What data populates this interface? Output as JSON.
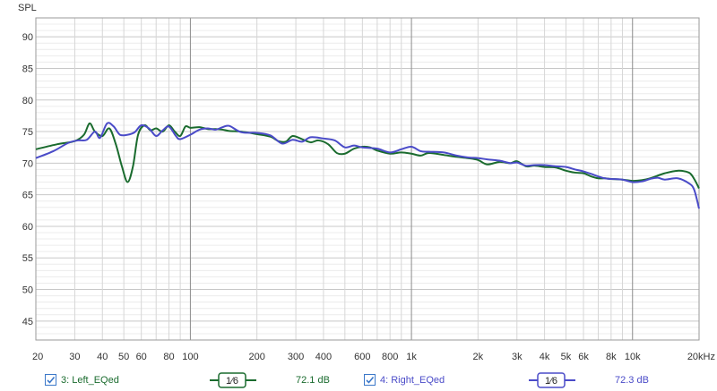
{
  "colors": {
    "left": "#1a6b2e",
    "right": "#4a4bc8"
  },
  "chart_data": {
    "type": "line",
    "ylabel": "SPL",
    "ylim": [
      42,
      93
    ],
    "yticks": [
      45,
      50,
      55,
      60,
      65,
      70,
      75,
      80,
      85,
      90
    ],
    "xscale": "log",
    "xlim": [
      20,
      20000
    ],
    "xticks": [
      {
        "v": 20,
        "label": "20"
      },
      {
        "v": 30,
        "label": "30"
      },
      {
        "v": 40,
        "label": "40"
      },
      {
        "v": 50,
        "label": "50"
      },
      {
        "v": 60,
        "label": "60"
      },
      {
        "v": 80,
        "label": "80"
      },
      {
        "v": 100,
        "label": "100"
      },
      {
        "v": 200,
        "label": "200"
      },
      {
        "v": 300,
        "label": "300"
      },
      {
        "v": 400,
        "label": "400"
      },
      {
        "v": 600,
        "label": "600"
      },
      {
        "v": 800,
        "label": "800"
      },
      {
        "v": 1000,
        "label": "1k"
      },
      {
        "v": 2000,
        "label": "2k"
      },
      {
        "v": 3000,
        "label": "3k"
      },
      {
        "v": 4000,
        "label": "4k"
      },
      {
        "v": 5000,
        "label": "5k"
      },
      {
        "v": 6000,
        "label": "6k"
      },
      {
        "v": 8000,
        "label": "8k"
      },
      {
        "v": 10000,
        "label": "10k"
      },
      {
        "v": 20000,
        "label": "20kHz"
      }
    ],
    "grid": true,
    "series": [
      {
        "name": "3: Left_EQed",
        "key": "left",
        "points": [
          [
            20,
            72.2
          ],
          [
            25,
            73.0
          ],
          [
            30,
            73.5
          ],
          [
            33,
            74.5
          ],
          [
            35,
            76.3
          ],
          [
            37,
            75.0
          ],
          [
            40,
            74.3
          ],
          [
            43,
            75.5
          ],
          [
            46,
            73.0
          ],
          [
            49,
            69.5
          ],
          [
            52,
            67.0
          ],
          [
            55,
            69.5
          ],
          [
            58,
            74.5
          ],
          [
            62,
            76.0
          ],
          [
            66,
            75.2
          ],
          [
            70,
            75.5
          ],
          [
            75,
            75.0
          ],
          [
            80,
            76.0
          ],
          [
            85,
            75.0
          ],
          [
            90,
            74.3
          ],
          [
            95,
            75.8
          ],
          [
            100,
            75.6
          ],
          [
            110,
            75.7
          ],
          [
            120,
            75.4
          ],
          [
            130,
            75.4
          ],
          [
            140,
            75.3
          ],
          [
            150,
            75.1
          ],
          [
            170,
            75.0
          ],
          [
            200,
            74.6
          ],
          [
            230,
            74.2
          ],
          [
            250,
            73.5
          ],
          [
            270,
            73.4
          ],
          [
            290,
            74.3
          ],
          [
            320,
            73.8
          ],
          [
            350,
            73.3
          ],
          [
            380,
            73.6
          ],
          [
            420,
            73.0
          ],
          [
            460,
            71.6
          ],
          [
            500,
            71.5
          ],
          [
            550,
            72.3
          ],
          [
            600,
            72.6
          ],
          [
            650,
            72.5
          ],
          [
            700,
            72.0
          ],
          [
            800,
            71.5
          ],
          [
            900,
            71.7
          ],
          [
            1000,
            71.5
          ],
          [
            1100,
            71.2
          ],
          [
            1200,
            71.6
          ],
          [
            1400,
            71.3
          ],
          [
            1600,
            71.0
          ],
          [
            1800,
            70.8
          ],
          [
            2000,
            70.5
          ],
          [
            2200,
            69.8
          ],
          [
            2500,
            70.2
          ],
          [
            2800,
            70.0
          ],
          [
            3000,
            70.3
          ],
          [
            3300,
            69.5
          ],
          [
            3600,
            69.6
          ],
          [
            4000,
            69.4
          ],
          [
            4500,
            69.3
          ],
          [
            5000,
            68.8
          ],
          [
            5500,
            68.5
          ],
          [
            6000,
            68.4
          ],
          [
            6500,
            67.9
          ],
          [
            7000,
            67.6
          ],
          [
            7500,
            67.6
          ],
          [
            8000,
            67.5
          ],
          [
            9000,
            67.4
          ],
          [
            10000,
            67.2
          ],
          [
            11000,
            67.3
          ],
          [
            12000,
            67.6
          ],
          [
            14000,
            68.4
          ],
          [
            16000,
            68.8
          ],
          [
            18000,
            68.5
          ],
          [
            19000,
            67.5
          ],
          [
            20000,
            66.0
          ]
        ]
      },
      {
        "name": "4: Right_EQed",
        "key": "right",
        "points": [
          [
            20,
            70.8
          ],
          [
            24,
            71.9
          ],
          [
            28,
            73.2
          ],
          [
            31,
            73.6
          ],
          [
            34,
            73.7
          ],
          [
            37,
            75.0
          ],
          [
            39,
            74.0
          ],
          [
            42,
            76.3
          ],
          [
            45,
            75.8
          ],
          [
            48,
            74.5
          ],
          [
            52,
            74.5
          ],
          [
            56,
            74.9
          ],
          [
            60,
            76.0
          ],
          [
            65,
            75.5
          ],
          [
            70,
            74.3
          ],
          [
            75,
            75.2
          ],
          [
            80,
            75.8
          ],
          [
            86,
            74.3
          ],
          [
            90,
            73.8
          ],
          [
            100,
            74.5
          ],
          [
            110,
            75.3
          ],
          [
            120,
            75.5
          ],
          [
            130,
            75.3
          ],
          [
            140,
            75.7
          ],
          [
            150,
            75.9
          ],
          [
            170,
            74.9
          ],
          [
            200,
            74.8
          ],
          [
            230,
            74.4
          ],
          [
            260,
            73.1
          ],
          [
            290,
            73.7
          ],
          [
            320,
            73.4
          ],
          [
            350,
            74.1
          ],
          [
            400,
            73.9
          ],
          [
            450,
            73.6
          ],
          [
            500,
            72.5
          ],
          [
            550,
            72.8
          ],
          [
            600,
            72.5
          ],
          [
            700,
            72.3
          ],
          [
            800,
            71.7
          ],
          [
            900,
            72.2
          ],
          [
            1000,
            72.6
          ],
          [
            1100,
            71.9
          ],
          [
            1200,
            71.8
          ],
          [
            1400,
            71.7
          ],
          [
            1600,
            71.2
          ],
          [
            1800,
            70.9
          ],
          [
            2000,
            70.8
          ],
          [
            2200,
            70.6
          ],
          [
            2500,
            70.4
          ],
          [
            2800,
            70.0
          ],
          [
            3000,
            70.1
          ],
          [
            3300,
            69.6
          ],
          [
            3600,
            69.7
          ],
          [
            4000,
            69.7
          ],
          [
            4500,
            69.5
          ],
          [
            5000,
            69.4
          ],
          [
            5500,
            69.0
          ],
          [
            6000,
            68.7
          ],
          [
            6500,
            68.3
          ],
          [
            7000,
            67.9
          ],
          [
            7500,
            67.6
          ],
          [
            8000,
            67.5
          ],
          [
            9000,
            67.4
          ],
          [
            10000,
            67.0
          ],
          [
            11000,
            67.1
          ],
          [
            12000,
            67.5
          ],
          [
            13000,
            67.7
          ],
          [
            14000,
            67.4
          ],
          [
            16000,
            67.6
          ],
          [
            18000,
            66.8
          ],
          [
            19000,
            65.8
          ],
          [
            20000,
            62.8
          ]
        ]
      }
    ]
  },
  "legend": {
    "left": {
      "label": "3: Left_EQed",
      "smoothing": "1⁄6",
      "value": "72.1 dB"
    },
    "right": {
      "label": "4: Right_EQed",
      "smoothing": "1⁄6",
      "value": "72.3 dB"
    }
  }
}
